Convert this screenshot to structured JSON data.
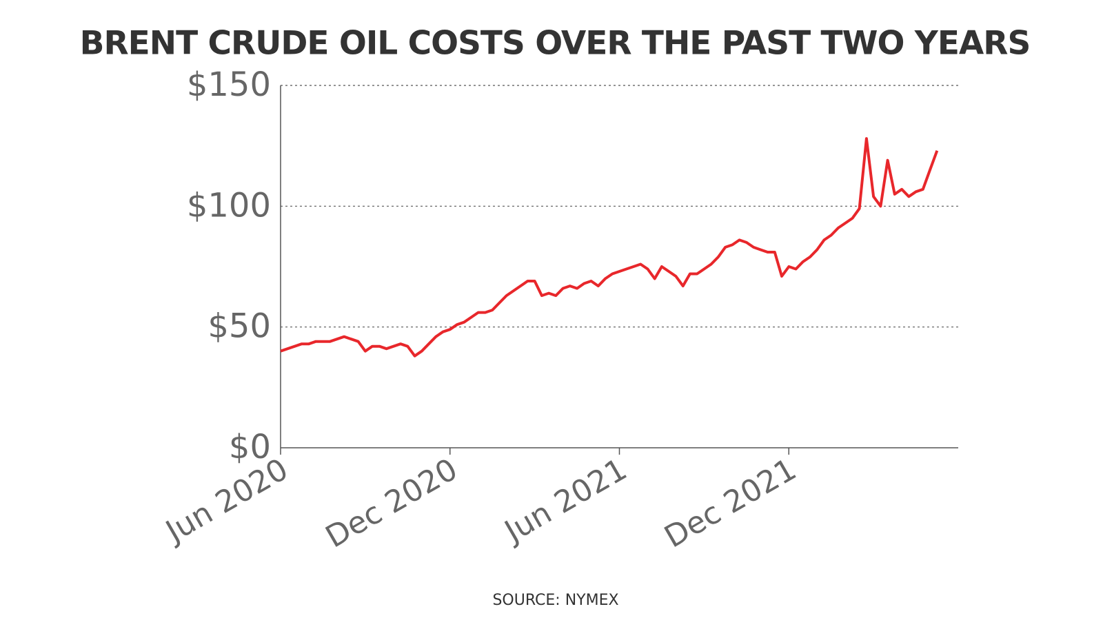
{
  "chart_data": {
    "type": "line",
    "title": "BRENT CRUDE OIL COSTS OVER THE PAST TWO YEARS",
    "source": "SOURCE: NYMEX",
    "categories": [
      "Jun 2020",
      null,
      null,
      null,
      null,
      null,
      null,
      null,
      null,
      null,
      null,
      null,
      null,
      null,
      null,
      null,
      null,
      null,
      null,
      null,
      null,
      null,
      null,
      null,
      "Dec 2020",
      null,
      null,
      null,
      null,
      null,
      null,
      null,
      null,
      null,
      null,
      null,
      null,
      null,
      null,
      null,
      null,
      null,
      null,
      null,
      null,
      null,
      null,
      null,
      "Jun 2021",
      null,
      null,
      null,
      null,
      null,
      null,
      null,
      null,
      null,
      null,
      null,
      null,
      null,
      null,
      null,
      null,
      null,
      null,
      null,
      null,
      null,
      null,
      null,
      "Dec 2021",
      null,
      null,
      null,
      null,
      null,
      null,
      null,
      null,
      null,
      null,
      null,
      null,
      null,
      null,
      null,
      null,
      null,
      null,
      null,
      null,
      null
    ],
    "values": [
      40,
      41,
      42,
      43,
      43,
      44,
      44,
      44,
      45,
      46,
      45,
      44,
      40,
      42,
      42,
      41,
      42,
      43,
      42,
      38,
      40,
      43,
      46,
      48,
      49,
      51,
      52,
      54,
      56,
      56,
      57,
      60,
      63,
      65,
      67,
      69,
      69,
      63,
      64,
      63,
      66,
      67,
      66,
      68,
      69,
      67,
      70,
      72,
      73,
      74,
      75,
      76,
      74,
      70,
      75,
      73,
      71,
      67,
      72,
      72,
      74,
      76,
      79,
      83,
      84,
      86,
      85,
      83,
      82,
      81,
      81,
      71,
      75,
      74,
      77,
      79,
      82,
      86,
      88,
      91,
      93,
      95,
      99,
      128,
      104,
      100,
      119,
      105,
      107,
      104,
      106,
      107,
      115,
      123
    ],
    "color": "#e8272b",
    "ylim": [
      0,
      150
    ],
    "yticks": [
      {
        "value": 0,
        "label": "$0"
      },
      {
        "value": 50,
        "label": "$50"
      },
      {
        "value": 100,
        "label": "$100"
      },
      {
        "value": 150,
        "label": "$150"
      }
    ],
    "grid": true
  }
}
